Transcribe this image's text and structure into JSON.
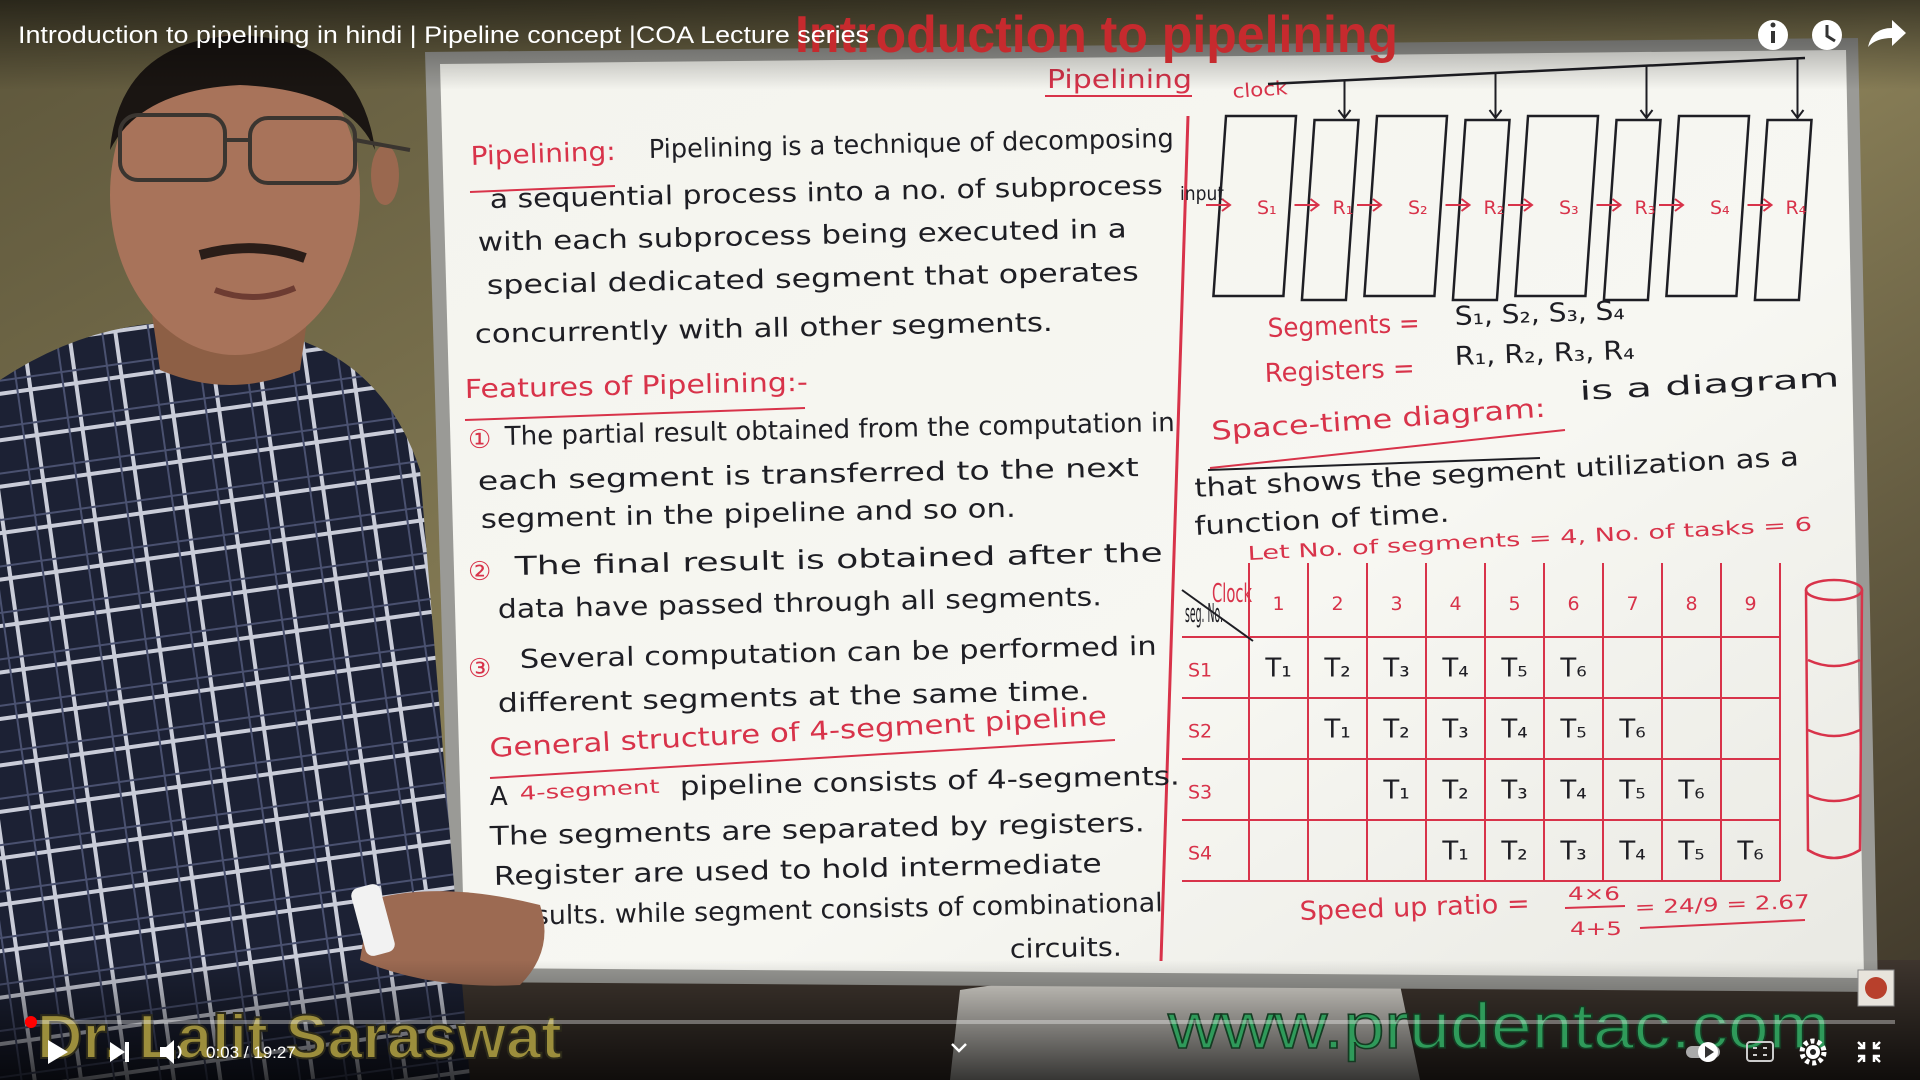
{
  "player": {
    "video_title": "Introduction to pipelining in hindi | Pipeline concept |COA Lecture series",
    "time": "0:03 / 19:27"
  },
  "overlay": {
    "title": "Introduction to pipelining",
    "presenter": "Dr. Lalit Saraswat",
    "website": "www.prudentac.com"
  },
  "whiteboard": {
    "heading": "Pipelining",
    "definition_term": "Pipelining:",
    "definition_lines": [
      "Pipelining is a technique of decomposing",
      "a sequential process into a no. of subprocess",
      "with each subprocess being executed in a",
      "special dedicated segment that operates",
      "concurrently with all other segments."
    ],
    "features_heading": "Features of Pipelining:-",
    "features": [
      {
        "marker": "①",
        "lines": [
          "The partial result obtained from the computation in",
          "each segment is transferred to the next",
          "segment in the pipeline and so on."
        ]
      },
      {
        "marker": "②",
        "lines": [
          "The final result is obtained after the",
          "data have passed through all segments."
        ]
      },
      {
        "marker": "③",
        "lines": [
          "Several computation can be performed in",
          "different segments at the same time."
        ]
      }
    ],
    "structure_heading": "General structure of 4-segment pipeline",
    "structure": {
      "prefix": "A",
      "highlight": "4-segment",
      "lines": [
        "pipeline consists of 4-segments.",
        "The segments are separated by registers.",
        "Register are used to hold intermediate",
        "results. while segment consists of combinational",
        "circuits."
      ]
    },
    "diagram": {
      "clock": "clock",
      "input": "input",
      "blocks": [
        "S₁",
        "R₁",
        "S₂",
        "R₂",
        "S₃",
        "R₃",
        "S₄",
        "R₄"
      ]
    },
    "segments": {
      "label": "Segments =",
      "value": "S₁, S₂, S₃, S₄"
    },
    "registers": {
      "label": "Registers =",
      "value": "R₁, R₂, R₃, R₄"
    },
    "space_time": {
      "term": "Space-time diagram:",
      "lines": [
        "is a diagram",
        "that shows the segment utilization as a",
        "function of time."
      ]
    },
    "given": "Let No. of segments = 4, No. of tasks = 6",
    "table": {
      "corner_top": "Clock",
      "corner_bottom": "seg. No.",
      "columns": [
        1,
        2,
        3,
        4,
        5,
        6,
        7,
        8,
        9
      ],
      "rows": [
        {
          "label": "S1",
          "cells": [
            "T₁",
            "T₂",
            "T₃",
            "T₄",
            "T₅",
            "T₆",
            null,
            null,
            null
          ]
        },
        {
          "label": "S2",
          "cells": [
            null,
            "T₁",
            "T₂",
            "T₃",
            "T₄",
            "T₅",
            "T₆",
            null,
            null
          ]
        },
        {
          "label": "S3",
          "cells": [
            null,
            null,
            "T₁",
            "T₂",
            "T₃",
            "T₄",
            "T₅",
            "T₆",
            null
          ]
        },
        {
          "label": "S4",
          "cells": [
            null,
            null,
            null,
            "T₁",
            "T₂",
            "T₃",
            "T₄",
            "T₅",
            "T₆"
          ]
        }
      ]
    },
    "speed_up": {
      "label": "Speed up ratio =",
      "numerator": "4×6",
      "denominator": "4+5",
      "result": "= 24/9 = 2.67"
    }
  }
}
